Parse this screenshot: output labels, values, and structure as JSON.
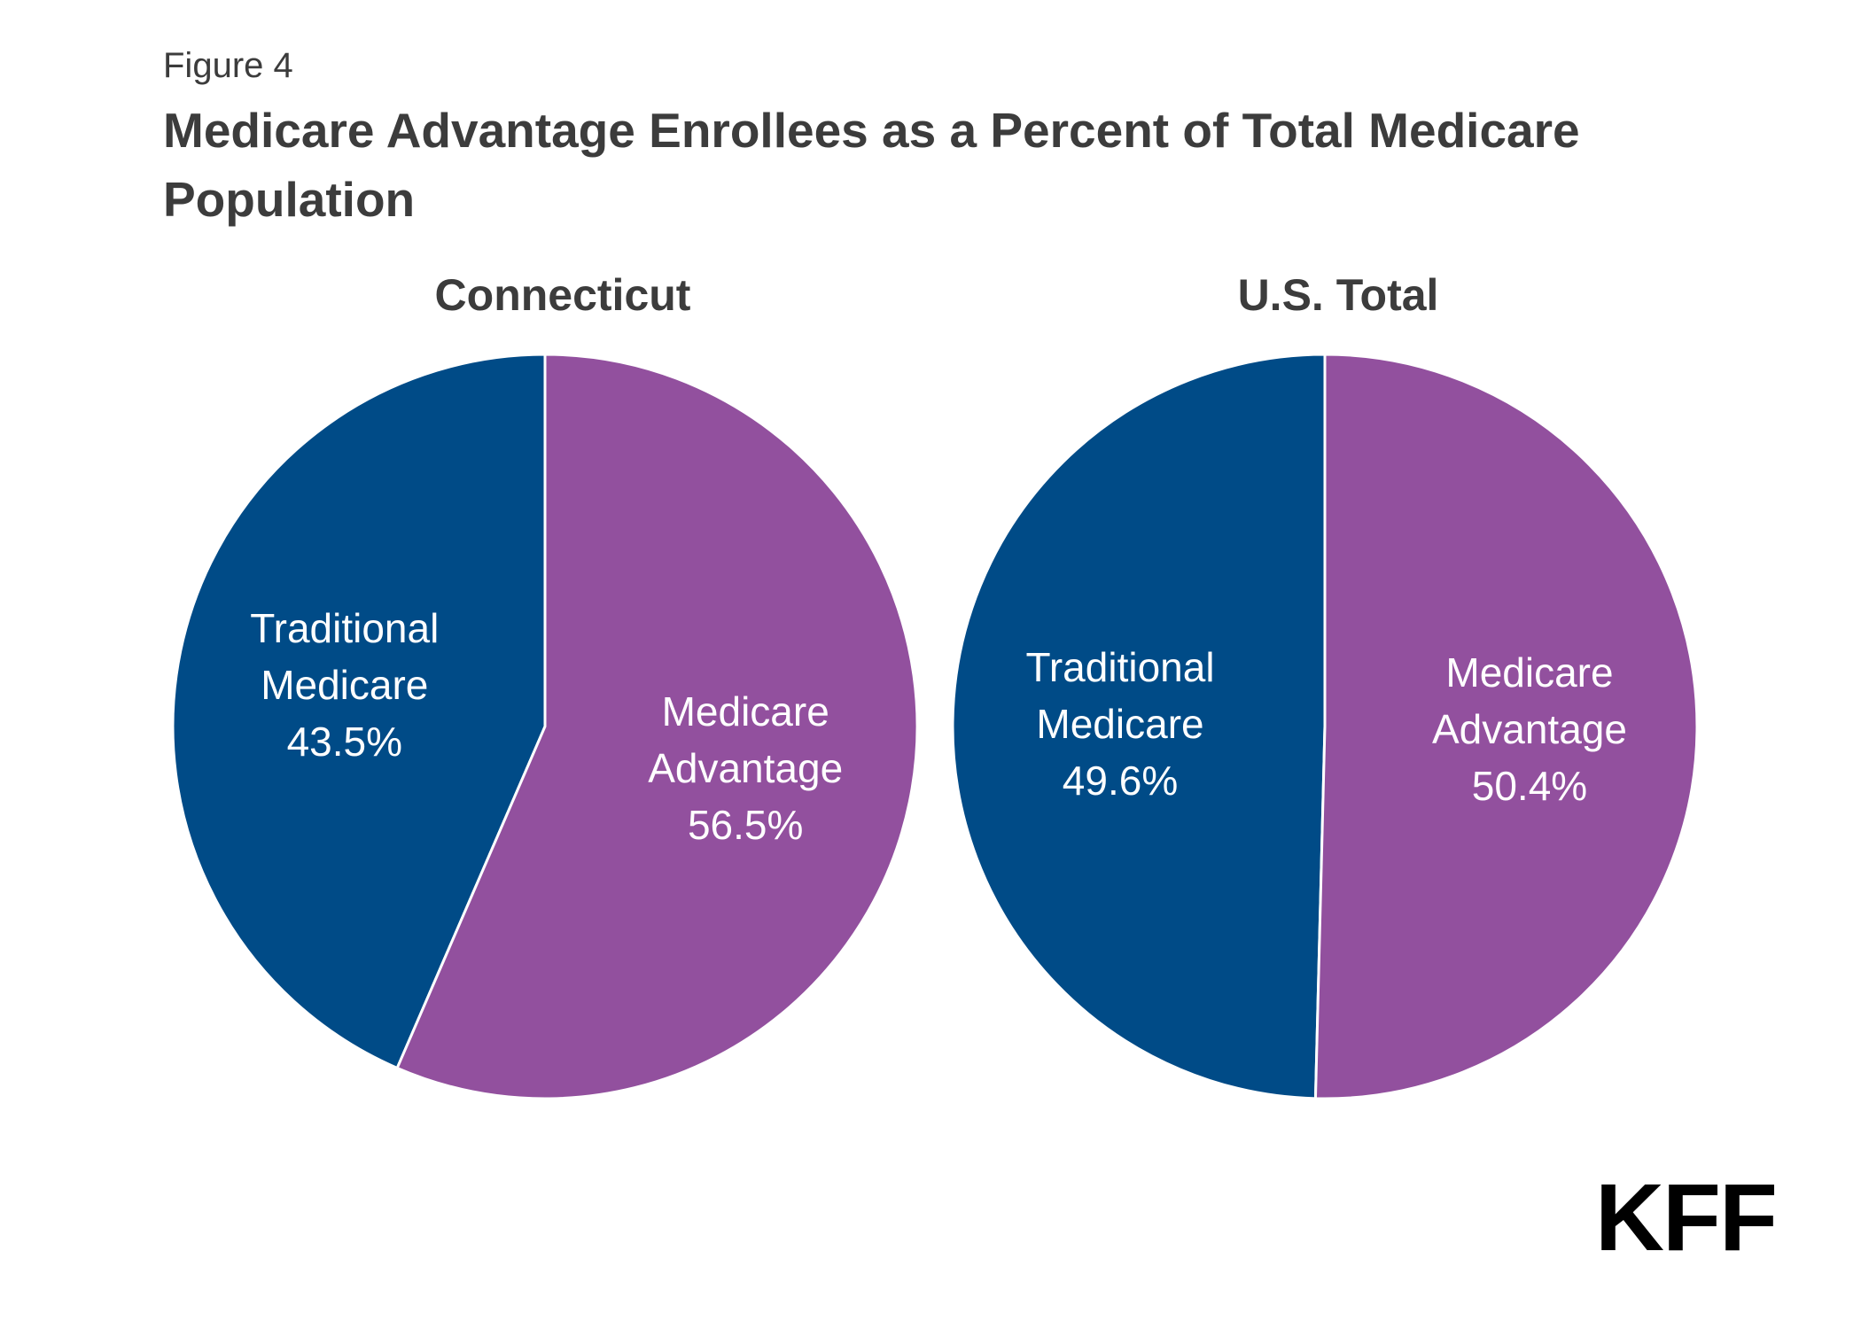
{
  "figure_label": "Figure 4",
  "title": "Medicare Advantage Enrollees as a Percent of Total Medicare Population",
  "logo_text": "KFF",
  "colors": {
    "traditional": "#004b87",
    "advantage": "#92509e",
    "separator": "#ffffff"
  },
  "chart_data": [
    {
      "type": "pie",
      "title": "Connecticut",
      "slices": [
        {
          "name": "Traditional Medicare",
          "label_lines": [
            "Traditional",
            "Medicare"
          ],
          "value": 43.5,
          "value_label": "43.5%",
          "color": "#004b87"
        },
        {
          "name": "Medicare Advantage",
          "label_lines": [
            "Medicare",
            "Advantage"
          ],
          "value": 56.5,
          "value_label": "56.5%",
          "color": "#92509e"
        }
      ]
    },
    {
      "type": "pie",
      "title": "U.S. Total",
      "slices": [
        {
          "name": "Traditional Medicare",
          "label_lines": [
            "Traditional",
            "Medicare"
          ],
          "value": 49.6,
          "value_label": "49.6%",
          "color": "#004b87"
        },
        {
          "name": "Medicare Advantage",
          "label_lines": [
            "Medicare",
            "Advantage"
          ],
          "value": 50.4,
          "value_label": "50.4%",
          "color": "#92509e"
        }
      ]
    }
  ]
}
